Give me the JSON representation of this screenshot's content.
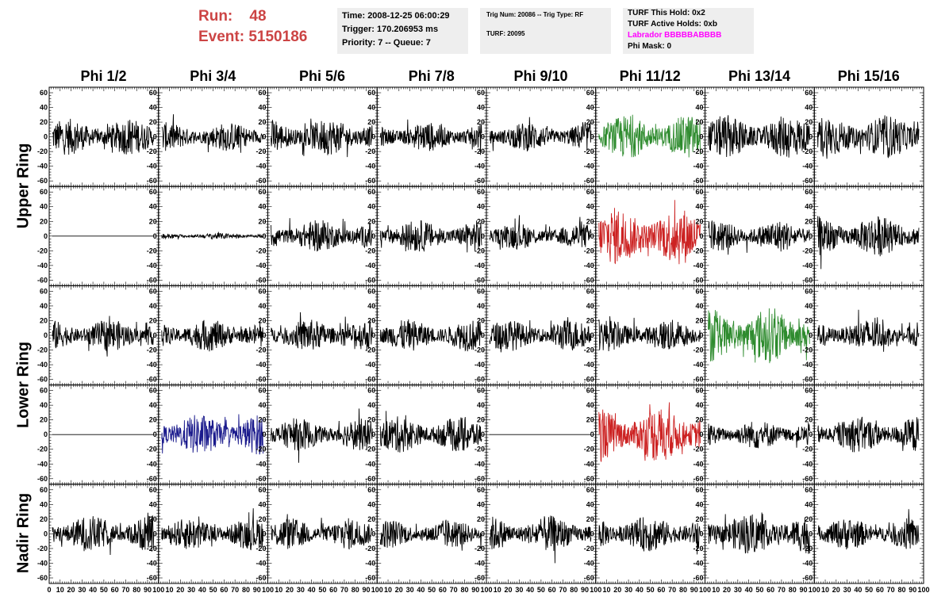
{
  "run": {
    "run_label": "Run:",
    "run_value": "48",
    "event_label": "Event:",
    "event_value": "5150186"
  },
  "info_time": {
    "time": "Time: 2008-12-25 06:00:29",
    "trigger": "Trigger: 170.206953 ms",
    "priority": "Priority: 7 -- Queue: 7"
  },
  "info_trig": {
    "trig": "Trig Num: 20086 -- Trig Type: RF",
    "turf": "TURF: 20095"
  },
  "info_turf": {
    "this_hold": "TURF This Hold: 0x2",
    "active_holds": "TURF Active Holds: 0xb",
    "labrador": "Labrador BBBBBABBBB",
    "phi_mask": "Phi Mask: 0"
  },
  "phi_headers": [
    "Phi 1/2",
    "Phi 3/4",
    "Phi 5/6",
    "Phi 7/8",
    "Phi 9/10",
    "Phi 11/12",
    "Phi 13/14",
    "Phi 15/16"
  ],
  "ring_labels": [
    "Upper Ring",
    "Lower Ring",
    "Nadir Ring"
  ],
  "y_ticks": [
    "60",
    "40",
    "20",
    "0",
    "-20",
    "-40",
    "-60"
  ],
  "x_ticks": [
    "0",
    "10",
    "20",
    "30",
    "40",
    "50",
    "60",
    "70",
    "80",
    "90",
    "100"
  ],
  "colors": {
    "black": "#000000",
    "green": "#2e8b2e",
    "red": "#cc2222",
    "blue": "#1a1a8c",
    "title_red": "#cc4444",
    "magenta": "#ff00ff",
    "panel_bg": "#eeeeee"
  },
  "trace_colors": [
    [
      "black",
      "black",
      "black",
      "black",
      "black",
      "green",
      "black",
      "black"
    ],
    [
      "black",
      "black",
      "black",
      "black",
      "black",
      "red",
      "black",
      "black"
    ],
    [
      "black",
      "black",
      "black",
      "black",
      "black",
      "black",
      "green",
      "black"
    ],
    [
      "black",
      "blue",
      "black",
      "black",
      "black",
      "red",
      "black",
      "black"
    ],
    [
      "black",
      "black",
      "black",
      "black",
      "black",
      "black",
      "black",
      "black"
    ]
  ],
  "trace_amplitude": [
    [
      25,
      20,
      25,
      20,
      20,
      30,
      30,
      30
    ],
    [
      0,
      4,
      22,
      22,
      18,
      40,
      22,
      28
    ],
    [
      22,
      22,
      22,
      22,
      22,
      22,
      38,
      22
    ],
    [
      0,
      28,
      22,
      25,
      0,
      38,
      20,
      25
    ],
    [
      25,
      22,
      22,
      20,
      25,
      25,
      28,
      22
    ]
  ],
  "y_range": [
    -60,
    60
  ],
  "x_range": [
    0,
    100
  ]
}
